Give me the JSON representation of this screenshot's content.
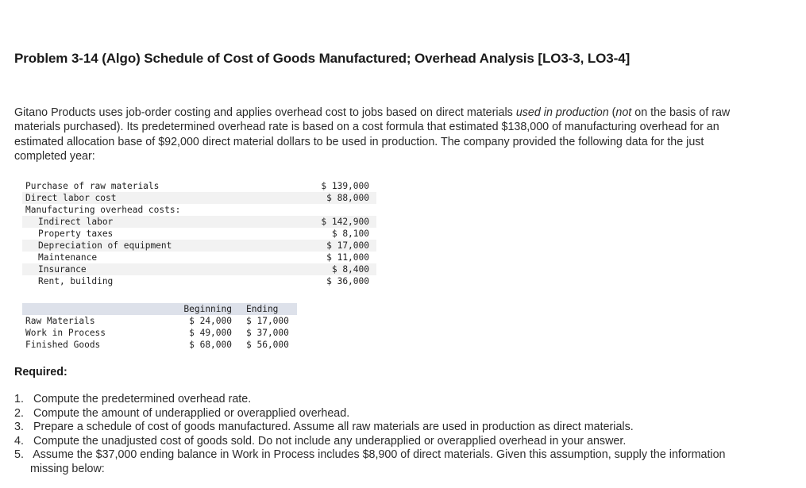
{
  "title": "Problem 3-14 (Algo) Schedule of Cost of Goods Manufactured; Overhead Analysis [LO3-3, LO3-4]",
  "intro": {
    "part1": "Gitano Products uses job-order costing and applies overhead cost to jobs based on direct materials ",
    "italic1": "used in production",
    "part2": " (",
    "italic2": "not",
    "part3": " on the basis of raw materials purchased). Its predetermined overhead rate is based on a cost formula that estimated $138,000 of manufacturing overhead for an estimated allocation base of $92,000 direct material dollars to be used in production. The company provided the following data for the just completed year:"
  },
  "cost_table": {
    "rows": [
      {
        "label": "Purchase of raw materials",
        "value": "$ 139,000"
      },
      {
        "label": "Direct labor cost",
        "value": "$ 88,000"
      },
      {
        "label": "Manufacturing overhead costs:",
        "value": ""
      },
      {
        "label": "Indirect labor",
        "value": "$ 142,900"
      },
      {
        "label": "Property taxes",
        "value": "$ 8,100"
      },
      {
        "label": "Depreciation of equipment",
        "value": "$ 17,000"
      },
      {
        "label": "Maintenance",
        "value": "$ 11,000"
      },
      {
        "label": "Insurance",
        "value": "$ 8,400"
      },
      {
        "label": "Rent, building",
        "value": "$ 36,000"
      }
    ]
  },
  "inventory_table": {
    "headers": [
      "",
      "Beginning",
      "Ending"
    ],
    "rows": [
      {
        "label": "Raw Materials",
        "beginning": "$ 24,000",
        "ending": "$ 17,000"
      },
      {
        "label": "Work in Process",
        "beginning": "$ 49,000",
        "ending": "$ 37,000"
      },
      {
        "label": "Finished Goods",
        "beginning": "$ 68,000",
        "ending": "$ 56,000"
      }
    ]
  },
  "required": {
    "heading": "Required:",
    "items": [
      {
        "num": "1.",
        "text": "Compute the predetermined overhead rate."
      },
      {
        "num": "2.",
        "text": "Compute the amount of underapplied or overapplied overhead."
      },
      {
        "num": "3.",
        "text": "Prepare a schedule of cost of goods manufactured. Assume all raw materials are used in production as direct materials."
      },
      {
        "num": "4.",
        "text": "Compute the unadjusted cost of goods sold. Do not include any underapplied or overapplied overhead in your answer."
      },
      {
        "num": "5.",
        "text": "Assume the $37,000 ending balance in Work in Process includes $8,900 of direct materials. Given this assumption, supply the information missing below:"
      }
    ]
  }
}
